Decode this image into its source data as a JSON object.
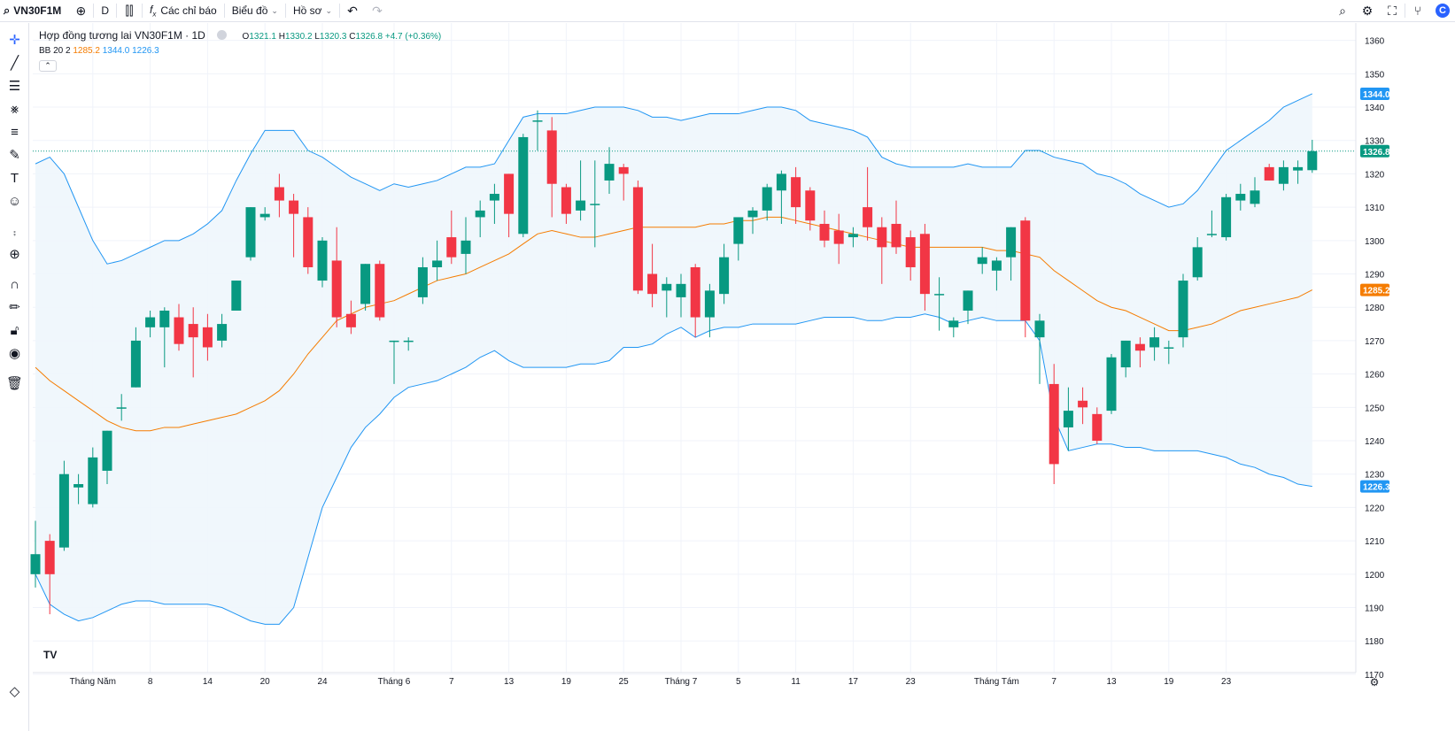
{
  "toolbar": {
    "symbol": "VN30F1M",
    "interval": "D",
    "indicators_label": "Các chỉ báo",
    "chart_label": "Biểu đồ",
    "profile_label": "Hồ sơ"
  },
  "legend": {
    "title": "Hợp đồng tương lai VN30F1M · 1D",
    "o_label": "O",
    "o_value": "1321.1",
    "h_label": "H",
    "h_value": "1330.2",
    "l_label": "L",
    "l_value": "1320.3",
    "c_label": "C",
    "c_value": "1326.8",
    "change": "+4.7 (+0.36%)",
    "bb_label": "BB 20 2",
    "bb_mid": "1285.2",
    "bb_upper": "1344.0",
    "bb_lower": "1226.3"
  },
  "colors": {
    "up": "#089981",
    "down": "#f23645",
    "bb_band": "#2196f3",
    "bb_basis": "#f57c00",
    "bb_fill": "#eef6fc"
  },
  "chart_data": {
    "type": "candlestick",
    "y_range": [
      1165,
      1366
    ],
    "y_ticks": [
      1170,
      1180,
      1190,
      1200,
      1210,
      1220,
      1230,
      1240,
      1250,
      1260,
      1270,
      1280,
      1290,
      1300,
      1310,
      1320,
      1330,
      1340,
      1350,
      1360
    ],
    "x_tick_labels": [
      "Tháng Năm",
      "8",
      "14",
      "20",
      "24",
      "Tháng 6",
      "7",
      "13",
      "19",
      "25",
      "Tháng 7",
      "5",
      "11",
      "17",
      "23",
      "Tháng Tám",
      "7",
      "13",
      "19",
      "23"
    ],
    "x_tick_index": [
      4,
      8,
      12,
      16,
      20,
      25,
      29,
      33,
      37,
      41,
      45,
      49,
      53,
      57,
      61,
      67,
      71,
      75,
      79,
      83
    ],
    "price_labels": [
      {
        "text": "1344.0",
        "value": 1344.0,
        "color": "#2196f3"
      },
      {
        "text": "1326.8",
        "value": 1326.8,
        "color": "#089981"
      },
      {
        "text": "1285.2",
        "value": 1285.2,
        "color": "#f57c00"
      },
      {
        "text": "1226.3",
        "value": 1226.3,
        "color": "#2196f3"
      }
    ],
    "last_close": 1326.8,
    "candles": [
      {
        "o": 1200,
        "h": 1216,
        "l": 1196,
        "c": 1206
      },
      {
        "o": 1210,
        "h": 1212,
        "l": 1188,
        "c": 1200
      },
      {
        "o": 1208,
        "h": 1234,
        "l": 1207,
        "c": 1230
      },
      {
        "o": 1226,
        "h": 1230,
        "l": 1221,
        "c": 1227
      },
      {
        "o": 1221,
        "h": 1238,
        "l": 1220,
        "c": 1235
      },
      {
        "o": 1231,
        "h": 1243,
        "l": 1227,
        "c": 1243
      },
      {
        "o": 1250,
        "h": 1254,
        "l": 1246,
        "c": 1250
      },
      {
        "o": 1256,
        "h": 1274,
        "l": 1256,
        "c": 1270
      },
      {
        "o": 1274,
        "h": 1279,
        "l": 1271,
        "c": 1277
      },
      {
        "o": 1274,
        "h": 1280,
        "l": 1262,
        "c": 1279
      },
      {
        "o": 1277,
        "h": 1281,
        "l": 1267,
        "c": 1269
      },
      {
        "o": 1275,
        "h": 1280,
        "l": 1259,
        "c": 1271
      },
      {
        "o": 1274,
        "h": 1278,
        "l": 1264,
        "c": 1268
      },
      {
        "o": 1270,
        "h": 1278,
        "l": 1268,
        "c": 1275
      },
      {
        "o": 1279,
        "h": 1288,
        "l": 1279,
        "c": 1288
      },
      {
        "o": 1295,
        "h": 1310,
        "l": 1294,
        "c": 1310
      },
      {
        "o": 1307,
        "h": 1310,
        "l": 1306,
        "c": 1308
      },
      {
        "o": 1316,
        "h": 1320,
        "l": 1307,
        "c": 1312
      },
      {
        "o": 1312,
        "h": 1314,
        "l": 1295,
        "c": 1308
      },
      {
        "o": 1307,
        "h": 1310,
        "l": 1290,
        "c": 1292
      },
      {
        "o": 1288,
        "h": 1301,
        "l": 1286,
        "c": 1300
      },
      {
        "o": 1294,
        "h": 1304,
        "l": 1274,
        "c": 1277
      },
      {
        "o": 1278,
        "h": 1282,
        "l": 1272,
        "c": 1274
      },
      {
        "o": 1281,
        "h": 1293,
        "l": 1279,
        "c": 1293
      },
      {
        "o": 1293,
        "h": 1294,
        "l": 1276,
        "c": 1277
      },
      {
        "o": 1270,
        "h": 1270,
        "l": 1257,
        "c": 1270
      },
      {
        "o": 1270,
        "h": 1271,
        "l": 1267,
        "c": 1270
      },
      {
        "o": 1283,
        "h": 1295,
        "l": 1281,
        "c": 1292
      },
      {
        "o": 1292,
        "h": 1300,
        "l": 1288,
        "c": 1294
      },
      {
        "o": 1301,
        "h": 1309,
        "l": 1293,
        "c": 1295
      },
      {
        "o": 1296,
        "h": 1307,
        "l": 1290,
        "c": 1300
      },
      {
        "o": 1307,
        "h": 1312,
        "l": 1301,
        "c": 1309
      },
      {
        "o": 1312,
        "h": 1317,
        "l": 1305,
        "c": 1314
      },
      {
        "o": 1320,
        "h": 1320,
        "l": 1301,
        "c": 1308
      },
      {
        "o": 1302,
        "h": 1332,
        "l": 1301,
        "c": 1331
      },
      {
        "o": 1336,
        "h": 1339,
        "l": 1327,
        "c": 1336
      },
      {
        "o": 1333,
        "h": 1337,
        "l": 1307,
        "c": 1317
      },
      {
        "o": 1316,
        "h": 1317,
        "l": 1305,
        "c": 1308
      },
      {
        "o": 1309,
        "h": 1324,
        "l": 1306,
        "c": 1312
      },
      {
        "o": 1311,
        "h": 1324,
        "l": 1298,
        "c": 1311
      },
      {
        "o": 1318,
        "h": 1328,
        "l": 1314,
        "c": 1323
      },
      {
        "o": 1322,
        "h": 1323,
        "l": 1312,
        "c": 1320
      },
      {
        "o": 1316,
        "h": 1318,
        "l": 1284,
        "c": 1285
      },
      {
        "o": 1290,
        "h": 1299,
        "l": 1280,
        "c": 1284
      },
      {
        "o": 1285,
        "h": 1289,
        "l": 1277,
        "c": 1287
      },
      {
        "o": 1283,
        "h": 1290,
        "l": 1277,
        "c": 1287
      },
      {
        "o": 1292,
        "h": 1293,
        "l": 1271,
        "c": 1277
      },
      {
        "o": 1277,
        "h": 1287,
        "l": 1271,
        "c": 1285
      },
      {
        "o": 1284,
        "h": 1299,
        "l": 1281,
        "c": 1295
      },
      {
        "o": 1299,
        "h": 1306,
        "l": 1294,
        "c": 1307
      },
      {
        "o": 1307,
        "h": 1310,
        "l": 1302,
        "c": 1309
      },
      {
        "o": 1309,
        "h": 1317,
        "l": 1306,
        "c": 1316
      },
      {
        "o": 1315,
        "h": 1321,
        "l": 1305,
        "c": 1320
      },
      {
        "o": 1319,
        "h": 1322,
        "l": 1305,
        "c": 1310
      },
      {
        "o": 1315,
        "h": 1316,
        "l": 1303,
        "c": 1306
      },
      {
        "o": 1305,
        "h": 1309,
        "l": 1298,
        "c": 1300
      },
      {
        "o": 1303,
        "h": 1308,
        "l": 1293,
        "c": 1299
      },
      {
        "o": 1301,
        "h": 1304,
        "l": 1298,
        "c": 1302
      },
      {
        "o": 1310,
        "h": 1322,
        "l": 1300,
        "c": 1304
      },
      {
        "o": 1304,
        "h": 1307,
        "l": 1287,
        "c": 1298
      },
      {
        "o": 1305,
        "h": 1312,
        "l": 1296,
        "c": 1298
      },
      {
        "o": 1301,
        "h": 1303,
        "l": 1288,
        "c": 1292
      },
      {
        "o": 1302,
        "h": 1305,
        "l": 1279,
        "c": 1284
      },
      {
        "o": 1284,
        "h": 1289,
        "l": 1273,
        "c": 1284
      },
      {
        "o": 1274,
        "h": 1277,
        "l": 1271,
        "c": 1276
      },
      {
        "o": 1279,
        "h": 1285,
        "l": 1275,
        "c": 1285
      },
      {
        "o": 1293,
        "h": 1298,
        "l": 1290,
        "c": 1295
      },
      {
        "o": 1291,
        "h": 1295,
        "l": 1285,
        "c": 1294
      },
      {
        "o": 1295,
        "h": 1304,
        "l": 1288,
        "c": 1304
      },
      {
        "o": 1306,
        "h": 1307,
        "l": 1271,
        "c": 1276
      },
      {
        "o": 1271,
        "h": 1278,
        "l": 1257,
        "c": 1276
      },
      {
        "o": 1257,
        "h": 1263,
        "l": 1227,
        "c": 1233
      },
      {
        "o": 1244,
        "h": 1256,
        "l": 1237,
        "c": 1249
      },
      {
        "o": 1252,
        "h": 1256,
        "l": 1245,
        "c": 1250
      },
      {
        "o": 1248,
        "h": 1250,
        "l": 1239,
        "c": 1240
      },
      {
        "o": 1249,
        "h": 1266,
        "l": 1248,
        "c": 1265
      },
      {
        "o": 1262,
        "h": 1270,
        "l": 1259,
        "c": 1270
      },
      {
        "o": 1269,
        "h": 1271,
        "l": 1262,
        "c": 1267
      },
      {
        "o": 1268,
        "h": 1274,
        "l": 1264,
        "c": 1271
      },
      {
        "o": 1268,
        "h": 1270,
        "l": 1263,
        "c": 1268
      },
      {
        "o": 1271,
        "h": 1290,
        "l": 1268,
        "c": 1288
      },
      {
        "o": 1289,
        "h": 1301,
        "l": 1288,
        "c": 1298
      },
      {
        "o": 1302,
        "h": 1309,
        "l": 1301,
        "c": 1302
      },
      {
        "o": 1301,
        "h": 1314,
        "l": 1300,
        "c": 1313
      },
      {
        "o": 1312,
        "h": 1317,
        "l": 1309,
        "c": 1314
      },
      {
        "o": 1311,
        "h": 1319,
        "l": 1310,
        "c": 1315
      },
      {
        "o": 1322,
        "h": 1323,
        "l": 1318,
        "c": 1318
      },
      {
        "o": 1317,
        "h": 1324,
        "l": 1315,
        "c": 1322
      },
      {
        "o": 1321,
        "h": 1324,
        "l": 1317,
        "c": 1322
      },
      {
        "o": 1321.1,
        "h": 1330.2,
        "l": 1320.3,
        "c": 1326.8
      }
    ],
    "bb_upper": [
      1323,
      1325,
      1320,
      1310,
      1300,
      1293,
      1294,
      1296,
      1298,
      1300,
      1300,
      1302,
      1305,
      1309,
      1318,
      1326,
      1333,
      1333,
      1333,
      1327,
      1325,
      1322,
      1319,
      1317,
      1315,
      1317,
      1316,
      1317,
      1318,
      1320,
      1322,
      1322,
      1323,
      1330,
      1337,
      1338,
      1338,
      1338,
      1339,
      1340,
      1340,
      1340,
      1339,
      1337,
      1337,
      1336,
      1337,
      1338,
      1338,
      1338,
      1339,
      1340,
      1340,
      1339,
      1336,
      1335,
      1334,
      1333,
      1331,
      1325,
      1323,
      1322,
      1322,
      1322,
      1322,
      1323,
      1322,
      1322,
      1322,
      1327,
      1327,
      1325,
      1324,
      1323,
      1320,
      1319,
      1317,
      1314,
      1312,
      1310,
      1311,
      1315,
      1321,
      1327,
      1330,
      1333,
      1336,
      1340,
      1342,
      1344
    ],
    "bb_mid": [
      1262,
      1258,
      1255,
      1252,
      1249,
      1246,
      1244,
      1243,
      1243,
      1244,
      1244,
      1245,
      1246,
      1247,
      1248,
      1250,
      1252,
      1255,
      1260,
      1266,
      1271,
      1276,
      1278,
      1280,
      1281,
      1282,
      1284,
      1286,
      1288,
      1289,
      1290,
      1292,
      1294,
      1296,
      1299,
      1302,
      1303,
      1302,
      1301,
      1301,
      1302,
      1303,
      1304,
      1304,
      1304,
      1304,
      1304,
      1305,
      1305,
      1306,
      1306,
      1307,
      1307,
      1306,
      1305,
      1304,
      1303,
      1302,
      1301,
      1300,
      1299,
      1298,
      1298,
      1298,
      1298,
      1298,
      1298,
      1297,
      1297,
      1296,
      1295,
      1291,
      1288,
      1285,
      1282,
      1280,
      1279,
      1277,
      1275,
      1273,
      1273,
      1274,
      1275,
      1277,
      1279,
      1280,
      1281,
      1282,
      1283,
      1285.2
    ],
    "bb_lower": [
      1200,
      1191,
      1188,
      1186,
      1187,
      1189,
      1191,
      1192,
      1192,
      1191,
      1191,
      1191,
      1191,
      1190,
      1188,
      1186,
      1185,
      1185,
      1190,
      1205,
      1220,
      1229,
      1238,
      1244,
      1248,
      1253,
      1256,
      1257,
      1258,
      1260,
      1262,
      1265,
      1267,
      1264,
      1262,
      1262,
      1262,
      1262,
      1263,
      1263,
      1264,
      1268,
      1268,
      1269,
      1272,
      1274,
      1271,
      1273,
      1274,
      1274,
      1275,
      1275,
      1275,
      1275,
      1276,
      1277,
      1277,
      1277,
      1276,
      1276,
      1277,
      1277,
      1278,
      1277,
      1275,
      1276,
      1277,
      1276,
      1276,
      1276,
      1270,
      1247,
      1237,
      1238,
      1239,
      1239,
      1238,
      1238,
      1237,
      1237,
      1237,
      1237,
      1236,
      1235,
      1233,
      1232,
      1230,
      1229,
      1227,
      1226.3
    ]
  }
}
